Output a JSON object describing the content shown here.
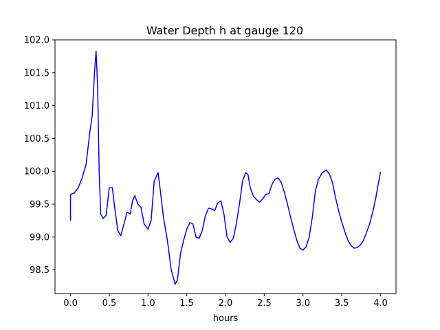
{
  "chart_data": {
    "type": "line",
    "title": "Water Depth h at gauge 120",
    "xlabel": "hours",
    "ylabel": "",
    "xlim": [
      -0.2,
      4.2
    ],
    "ylim": [
      98.14,
      102.0
    ],
    "xticks": [
      "0.0",
      "0.5",
      "1.0",
      "1.5",
      "2.0",
      "2.5",
      "3.0",
      "3.5",
      "4.0"
    ],
    "yticks": [
      "98.5",
      "99.0",
      "99.5",
      "100.0",
      "100.5",
      "101.0",
      "101.5",
      "102.0"
    ],
    "grid": false,
    "legend": "none",
    "series": [
      {
        "color": "#0000ff",
        "x": [
          0.0,
          0.0,
          0.05,
          0.1,
          0.15,
          0.2,
          0.25,
          0.28,
          0.31,
          0.33,
          0.35,
          0.37,
          0.39,
          0.42,
          0.46,
          0.5,
          0.54,
          0.57,
          0.61,
          0.65,
          0.69,
          0.73,
          0.77,
          0.8,
          0.83,
          0.87,
          0.91,
          0.95,
          1.0,
          1.04,
          1.08,
          1.13,
          1.16,
          1.2,
          1.25,
          1.3,
          1.35,
          1.38,
          1.42,
          1.46,
          1.5,
          1.54,
          1.58,
          1.62,
          1.66,
          1.7,
          1.74,
          1.78,
          1.82,
          1.86,
          1.9,
          1.94,
          1.98,
          2.02,
          2.06,
          2.1,
          2.14,
          2.18,
          2.22,
          2.26,
          2.29,
          2.32,
          2.36,
          2.4,
          2.44,
          2.48,
          2.52,
          2.56,
          2.6,
          2.64,
          2.68,
          2.72,
          2.76,
          2.8,
          2.84,
          2.88,
          2.92,
          2.96,
          3.0,
          3.04,
          3.08,
          3.12,
          3.16,
          3.2,
          3.25,
          3.3,
          3.34,
          3.38,
          3.42,
          3.46,
          3.5,
          3.54,
          3.58,
          3.62,
          3.66,
          3.7,
          3.74,
          3.78,
          3.82,
          3.86,
          3.9,
          3.94,
          3.97,
          4.0
        ],
        "y": [
          99.25,
          99.65,
          99.67,
          99.75,
          99.9,
          100.1,
          100.6,
          100.85,
          101.5,
          101.83,
          101.3,
          100.0,
          99.35,
          99.28,
          99.33,
          99.75,
          99.75,
          99.45,
          99.1,
          99.02,
          99.2,
          99.38,
          99.35,
          99.55,
          99.63,
          99.5,
          99.45,
          99.2,
          99.12,
          99.25,
          99.85,
          99.98,
          99.7,
          99.3,
          98.95,
          98.5,
          98.28,
          98.35,
          98.75,
          98.95,
          99.12,
          99.22,
          99.2,
          99.0,
          98.98,
          99.1,
          99.32,
          99.44,
          99.43,
          99.4,
          99.52,
          99.55,
          99.35,
          99.0,
          98.92,
          98.98,
          99.2,
          99.5,
          99.85,
          99.98,
          99.95,
          99.75,
          99.62,
          99.57,
          99.53,
          99.58,
          99.65,
          99.66,
          99.8,
          99.88,
          99.9,
          99.83,
          99.68,
          99.5,
          99.3,
          99.12,
          98.95,
          98.83,
          98.8,
          98.85,
          99.0,
          99.3,
          99.7,
          99.88,
          99.98,
          100.02,
          99.96,
          99.83,
          99.6,
          99.4,
          99.23,
          99.08,
          98.95,
          98.87,
          98.83,
          98.84,
          98.88,
          98.95,
          99.07,
          99.2,
          99.38,
          99.6,
          99.8,
          99.99
        ]
      }
    ]
  }
}
